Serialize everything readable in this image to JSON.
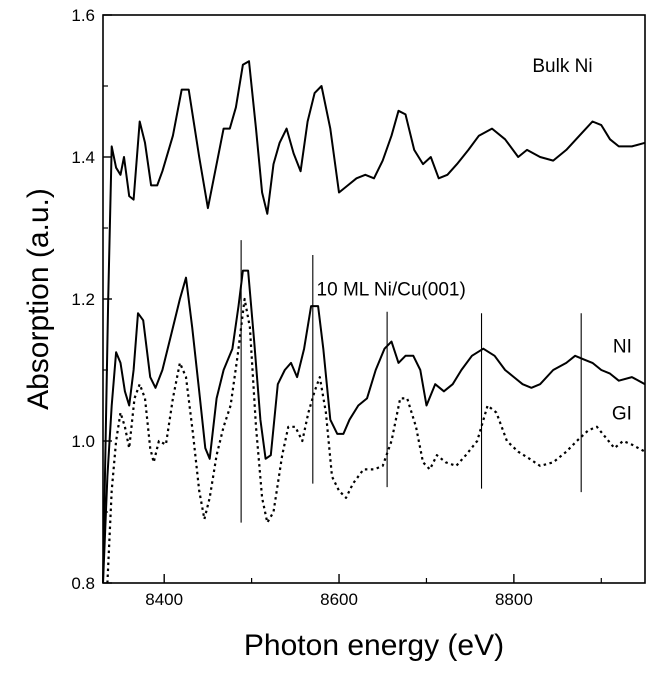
{
  "chart_data": {
    "type": "line",
    "title": "",
    "xlabel": "Photon energy (eV)",
    "ylabel": "Absorption (a.u.)",
    "xlim": [
      8330,
      8950
    ],
    "ylim": [
      0.8,
      1.6
    ],
    "xticks": [
      8400,
      8600,
      8800
    ],
    "yticks": [
      0.8,
      1.0,
      1.2,
      1.4,
      1.6
    ],
    "xtick_labels": [
      "8400",
      "8600",
      "8800"
    ],
    "ytick_labels": [
      "0.8",
      "1.0",
      "1.2",
      "1.4",
      "1.6"
    ],
    "grid": false,
    "annotations": [
      {
        "text": "Bulk Ni",
        "x": 8890,
        "y": 1.52
      },
      {
        "text": "10 ML Ni/Cu(001)",
        "x": 8745,
        "y": 1.205
      },
      {
        "text": "NI",
        "x": 8935,
        "y": 1.125
      },
      {
        "text": "GI",
        "x": 8935,
        "y": 1.03
      }
    ],
    "vertical_markers": [
      {
        "x": 8488,
        "y_range": [
          0.885,
          1.283
        ]
      },
      {
        "x": 8570,
        "y_range": [
          0.94,
          1.262
        ]
      },
      {
        "x": 8655,
        "y_range": [
          0.935,
          1.182
        ]
      },
      {
        "x": 8763,
        "y_range": [
          0.933,
          1.18
        ]
      },
      {
        "x": 8877,
        "y_range": [
          0.928,
          1.18
        ]
      }
    ],
    "series": [
      {
        "style": "solid",
        "points": [
          [
            8330,
            0.8
          ],
          [
            8336,
            1.2
          ],
          [
            8340,
            1.415
          ],
          [
            8345,
            1.385
          ],
          [
            8350,
            1.375
          ],
          [
            8354,
            1.4
          ],
          [
            8360,
            1.345
          ],
          [
            8365,
            1.34
          ],
          [
            8372,
            1.45
          ],
          [
            8378,
            1.42
          ],
          [
            8385,
            1.36
          ],
          [
            8392,
            1.36
          ],
          [
            8398,
            1.38
          ],
          [
            8410,
            1.43
          ],
          [
            8420,
            1.495
          ],
          [
            8428,
            1.495
          ],
          [
            8440,
            1.4
          ],
          [
            8450,
            1.328
          ],
          [
            8460,
            1.39
          ],
          [
            8468,
            1.44
          ],
          [
            8475,
            1.44
          ],
          [
            8482,
            1.47
          ],
          [
            8490,
            1.53
          ],
          [
            8497,
            1.535
          ],
          [
            8505,
            1.44
          ],
          [
            8512,
            1.35
          ],
          [
            8518,
            1.32
          ],
          [
            8525,
            1.39
          ],
          [
            8532,
            1.42
          ],
          [
            8540,
            1.44
          ],
          [
            8548,
            1.405
          ],
          [
            8556,
            1.38
          ],
          [
            8564,
            1.45
          ],
          [
            8572,
            1.49
          ],
          [
            8580,
            1.5
          ],
          [
            8590,
            1.44
          ],
          [
            8600,
            1.35
          ],
          [
            8610,
            1.36
          ],
          [
            8620,
            1.37
          ],
          [
            8630,
            1.375
          ],
          [
            8640,
            1.37
          ],
          [
            8650,
            1.395
          ],
          [
            8660,
            1.43
          ],
          [
            8668,
            1.465
          ],
          [
            8676,
            1.46
          ],
          [
            8686,
            1.41
          ],
          [
            8696,
            1.39
          ],
          [
            8705,
            1.4
          ],
          [
            8714,
            1.37
          ],
          [
            8724,
            1.375
          ],
          [
            8735,
            1.39
          ],
          [
            8748,
            1.41
          ],
          [
            8760,
            1.43
          ],
          [
            8775,
            1.44
          ],
          [
            8790,
            1.425
          ],
          [
            8805,
            1.4
          ],
          [
            8815,
            1.41
          ],
          [
            8830,
            1.4
          ],
          [
            8845,
            1.395
          ],
          [
            8860,
            1.41
          ],
          [
            8875,
            1.43
          ],
          [
            8890,
            1.45
          ],
          [
            8900,
            1.445
          ],
          [
            8910,
            1.425
          ],
          [
            8920,
            1.415
          ],
          [
            8935,
            1.415
          ],
          [
            8950,
            1.42
          ]
        ]
      },
      {
        "style": "solid",
        "points": [
          [
            8330,
            0.8
          ],
          [
            8335,
            0.95
          ],
          [
            8340,
            1.05
          ],
          [
            8345,
            1.125
          ],
          [
            8350,
            1.11
          ],
          [
            8355,
            1.07
          ],
          [
            8360,
            1.05
          ],
          [
            8365,
            1.1
          ],
          [
            8370,
            1.18
          ],
          [
            8376,
            1.17
          ],
          [
            8384,
            1.09
          ],
          [
            8390,
            1.075
          ],
          [
            8398,
            1.1
          ],
          [
            8408,
            1.15
          ],
          [
            8418,
            1.2
          ],
          [
            8425,
            1.23
          ],
          [
            8432,
            1.16
          ],
          [
            8440,
            1.07
          ],
          [
            8447,
            0.99
          ],
          [
            8452,
            0.975
          ],
          [
            8460,
            1.06
          ],
          [
            8468,
            1.1
          ],
          [
            8478,
            1.13
          ],
          [
            8485,
            1.19
          ],
          [
            8490,
            1.24
          ],
          [
            8496,
            1.24
          ],
          [
            8503,
            1.14
          ],
          [
            8510,
            1.03
          ],
          [
            8516,
            0.975
          ],
          [
            8522,
            0.98
          ],
          [
            8530,
            1.08
          ],
          [
            8538,
            1.1
          ],
          [
            8545,
            1.11
          ],
          [
            8552,
            1.09
          ],
          [
            8560,
            1.13
          ],
          [
            8568,
            1.19
          ],
          [
            8576,
            1.19
          ],
          [
            8582,
            1.13
          ],
          [
            8590,
            1.03
          ],
          [
            8598,
            1.01
          ],
          [
            8605,
            1.01
          ],
          [
            8612,
            1.03
          ],
          [
            8622,
            1.05
          ],
          [
            8632,
            1.06
          ],
          [
            8642,
            1.1
          ],
          [
            8652,
            1.13
          ],
          [
            8660,
            1.14
          ],
          [
            8668,
            1.11
          ],
          [
            8676,
            1.12
          ],
          [
            8685,
            1.12
          ],
          [
            8693,
            1.1
          ],
          [
            8700,
            1.05
          ],
          [
            8710,
            1.08
          ],
          [
            8720,
            1.07
          ],
          [
            8730,
            1.08
          ],
          [
            8740,
            1.1
          ],
          [
            8752,
            1.12
          ],
          [
            8765,
            1.13
          ],
          [
            8778,
            1.12
          ],
          [
            8790,
            1.1
          ],
          [
            8800,
            1.09
          ],
          [
            8810,
            1.08
          ],
          [
            8820,
            1.075
          ],
          [
            8830,
            1.08
          ],
          [
            8845,
            1.1
          ],
          [
            8860,
            1.11
          ],
          [
            8870,
            1.12
          ],
          [
            8880,
            1.115
          ],
          [
            8890,
            1.11
          ],
          [
            8900,
            1.1
          ],
          [
            8910,
            1.095
          ],
          [
            8920,
            1.085
          ],
          [
            8935,
            1.09
          ],
          [
            8950,
            1.08
          ]
        ]
      },
      {
        "style": "dotted",
        "points": [
          [
            8335,
            0.8
          ],
          [
            8340,
            0.93
          ],
          [
            8345,
            1.0
          ],
          [
            8350,
            1.04
          ],
          [
            8355,
            1.02
          ],
          [
            8360,
            0.99
          ],
          [
            8366,
            1.06
          ],
          [
            8372,
            1.08
          ],
          [
            8378,
            1.06
          ],
          [
            8384,
            0.99
          ],
          [
            8388,
            0.97
          ],
          [
            8394,
            1.0
          ],
          [
            8402,
            0.995
          ],
          [
            8410,
            1.06
          ],
          [
            8418,
            1.11
          ],
          [
            8425,
            1.09
          ],
          [
            8433,
            1.01
          ],
          [
            8440,
            0.93
          ],
          [
            8446,
            0.89
          ],
          [
            8452,
            0.92
          ],
          [
            8460,
            0.98
          ],
          [
            8468,
            1.02
          ],
          [
            8476,
            1.05
          ],
          [
            8484,
            1.12
          ],
          [
            8492,
            1.2
          ],
          [
            8498,
            1.16
          ],
          [
            8505,
            1.02
          ],
          [
            8512,
            0.92
          ],
          [
            8518,
            0.885
          ],
          [
            8525,
            0.9
          ],
          [
            8535,
            0.98
          ],
          [
            8542,
            1.02
          ],
          [
            8550,
            1.02
          ],
          [
            8558,
            1.0
          ],
          [
            8565,
            1.04
          ],
          [
            8572,
            1.07
          ],
          [
            8578,
            1.09
          ],
          [
            8585,
            1.04
          ],
          [
            8592,
            0.95
          ],
          [
            8600,
            0.93
          ],
          [
            8608,
            0.92
          ],
          [
            8616,
            0.94
          ],
          [
            8628,
            0.96
          ],
          [
            8640,
            0.96
          ],
          [
            8650,
            0.965
          ],
          [
            8660,
            1.0
          ],
          [
            8670,
            1.06
          ],
          [
            8678,
            1.06
          ],
          [
            8688,
            1.02
          ],
          [
            8696,
            0.97
          ],
          [
            8704,
            0.96
          ],
          [
            8712,
            0.98
          ],
          [
            8722,
            0.97
          ],
          [
            8734,
            0.965
          ],
          [
            8745,
            0.98
          ],
          [
            8758,
            1.0
          ],
          [
            8770,
            1.05
          ],
          [
            8780,
            1.04
          ],
          [
            8792,
            1.0
          ],
          [
            8805,
            0.985
          ],
          [
            8818,
            0.975
          ],
          [
            8830,
            0.965
          ],
          [
            8845,
            0.97
          ],
          [
            8860,
            0.985
          ],
          [
            8872,
            1.0
          ],
          [
            8885,
            1.015
          ],
          [
            8895,
            1.02
          ],
          [
            8905,
            1.005
          ],
          [
            8915,
            0.99
          ],
          [
            8925,
            1.0
          ],
          [
            8935,
            0.995
          ],
          [
            8950,
            0.985
          ]
        ]
      }
    ]
  }
}
